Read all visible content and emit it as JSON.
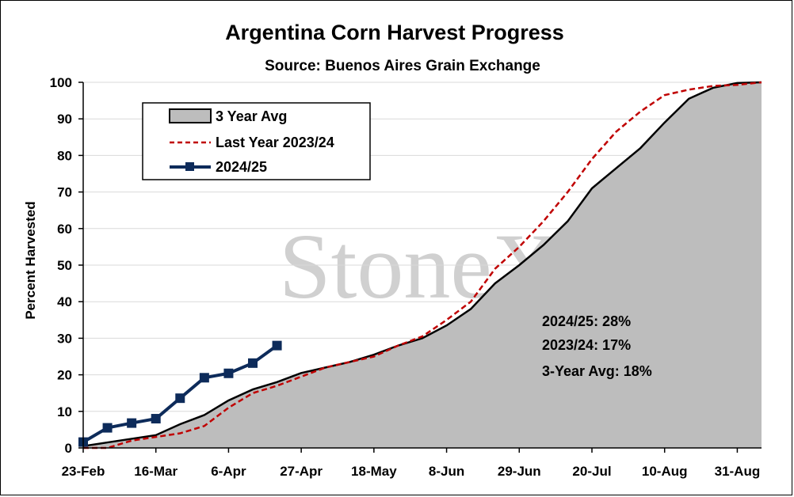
{
  "chart_data": {
    "type": "line",
    "title": "Argentina Corn Harvest Progress",
    "subtitle": "Source: Buenos Aires Grain Exchange",
    "ylabel": "Percent Harvested",
    "xlabel": "",
    "ylim": [
      0,
      100
    ],
    "yticks": [
      0,
      10,
      20,
      30,
      40,
      50,
      60,
      70,
      80,
      90,
      100
    ],
    "x_tick_labels": [
      "23-Feb",
      "16-Mar",
      "6-Apr",
      "27-Apr",
      "18-May",
      "8-Jun",
      "29-Jun",
      "20-Jul",
      "10-Aug",
      "31-Aug"
    ],
    "grid": "horizontal",
    "legend_position": "top-left",
    "watermark": "StoneX",
    "annotations": [
      "2024/25: 28%",
      "2023/24: 17%",
      "3-Year Avg: 18%"
    ],
    "series": [
      {
        "name": "3 Year Avg",
        "style": "area",
        "color": "#000000",
        "fill": "#bdbdbd",
        "x": [
          "23-Feb",
          "2-Mar",
          "9-Mar",
          "16-Mar",
          "23-Mar",
          "30-Mar",
          "6-Apr",
          "13-Apr",
          "20-Apr",
          "27-Apr",
          "4-May",
          "11-May",
          "18-May",
          "25-May",
          "1-Jun",
          "8-Jun",
          "15-Jun",
          "22-Jun",
          "29-Jun",
          "6-Jul",
          "13-Jul",
          "20-Jul",
          "27-Jul",
          "3-Aug",
          "10-Aug",
          "17-Aug",
          "24-Aug",
          "31-Aug",
          "7-Sep"
        ],
        "values": [
          0.5,
          1.5,
          2.5,
          3.5,
          6.5,
          9,
          13,
          16,
          18,
          20.5,
          22,
          23.5,
          25.5,
          28,
          30,
          33.5,
          38,
          45,
          50,
          55.5,
          62,
          71,
          76.5,
          82,
          89,
          95.5,
          98.5,
          99.8,
          100
        ]
      },
      {
        "name": "Last Year 2023/24",
        "style": "dashed",
        "color": "#c00000",
        "x": [
          "23-Feb",
          "2-Mar",
          "9-Mar",
          "16-Mar",
          "23-Mar",
          "30-Mar",
          "6-Apr",
          "13-Apr",
          "20-Apr",
          "27-Apr",
          "4-May",
          "11-May",
          "18-May",
          "25-May",
          "1-Jun",
          "8-Jun",
          "15-Jun",
          "22-Jun",
          "29-Jun",
          "6-Jul",
          "13-Jul",
          "20-Jul",
          "27-Jul",
          "3-Aug",
          "10-Aug",
          "17-Aug",
          "24-Aug",
          "31-Aug",
          "7-Sep"
        ],
        "values": [
          0,
          0,
          2,
          3,
          4,
          6,
          11,
          15,
          17,
          19.5,
          22,
          23.5,
          25,
          28,
          30.5,
          35,
          40,
          49,
          55,
          62,
          70,
          79,
          86.5,
          92,
          96.5,
          98,
          99,
          99.3,
          100
        ]
      },
      {
        "name": "2024/25",
        "style": "line-markers",
        "color": "#0d2b5a",
        "x": [
          "23-Feb",
          "2-Mar",
          "9-Mar",
          "16-Mar",
          "23-Mar",
          "30-Mar",
          "6-Apr",
          "13-Apr",
          "20-Apr"
        ],
        "values": [
          1.6,
          5.5,
          6.8,
          8,
          13.6,
          19.2,
          20.4,
          23.2,
          28
        ]
      }
    ]
  }
}
